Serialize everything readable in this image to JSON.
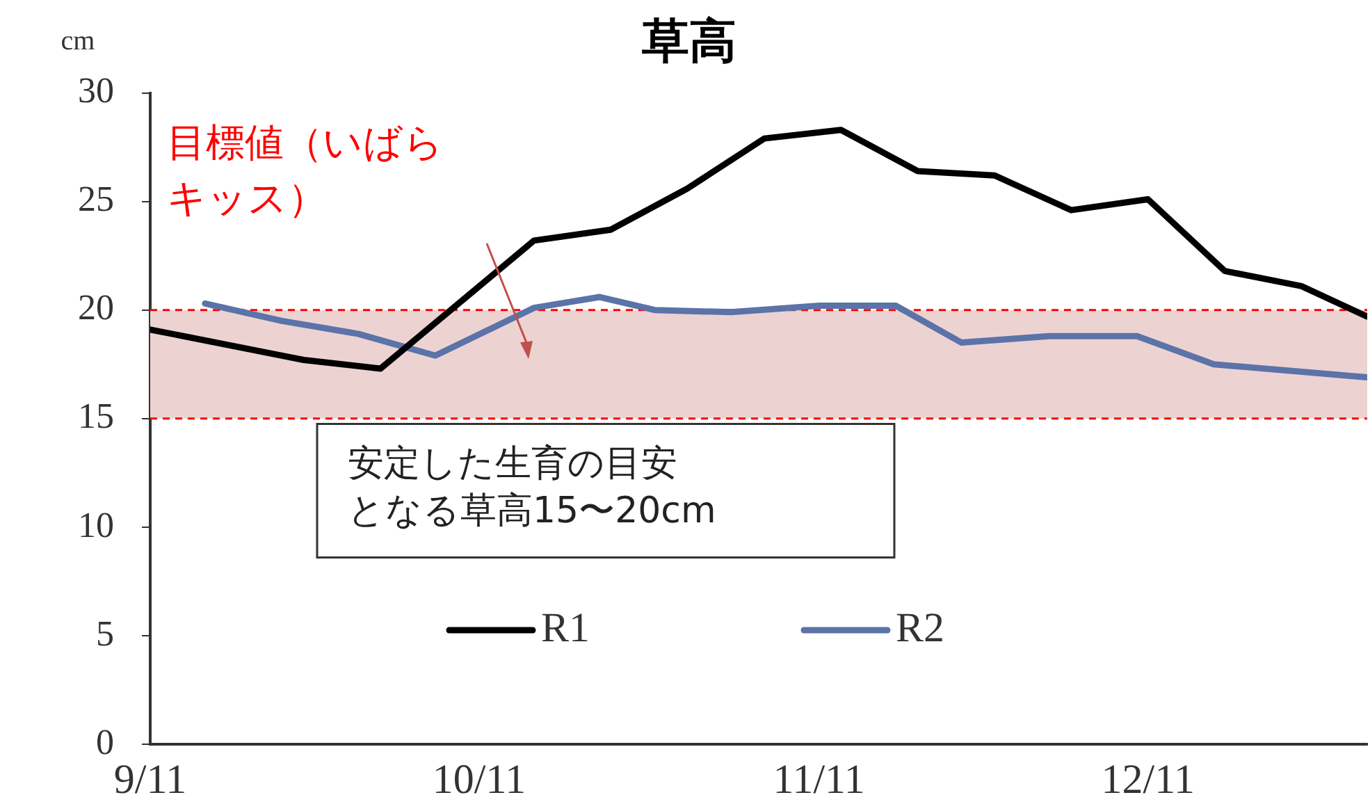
{
  "chart_data": {
    "type": "line",
    "title": "草高",
    "ylabel": "cm",
    "xlim": [
      "--09-11",
      "--12-31"
    ],
    "xticks": [
      {
        "value": "--09-11",
        "label": "9/11"
      },
      {
        "value": "--10-11",
        "label": "10/11"
      },
      {
        "value": "--11-11",
        "label": "11/11"
      },
      {
        "value": "--12-11",
        "label": "12/11"
      }
    ],
    "ylim": [
      0,
      30
    ],
    "yticks": [
      0,
      5,
      10,
      15,
      20,
      25,
      30
    ],
    "series": [
      {
        "name": "R1",
        "color": "#000000",
        "x": [
          "--09-11",
          "--09-25",
          "--10-02",
          "--10-16",
          "--10-23",
          "--10-30",
          "--11-06",
          "--11-13",
          "--11-20",
          "--11-27",
          "--12-04",
          "--12-11",
          "--12-18",
          "--12-25",
          "--12-31"
        ],
        "values": [
          19.1,
          17.7,
          17.3,
          23.2,
          23.7,
          25.6,
          27.9,
          28.3,
          26.4,
          26.2,
          24.6,
          25.1,
          21.8,
          21.1,
          19.7
        ]
      },
      {
        "name": "R2",
        "color": "#5b73a8",
        "x": [
          "--09-16",
          "--09-23",
          "--09-30",
          "--10-07",
          "--10-16",
          "--10-22",
          "--10-27",
          "--11-03",
          "--11-11",
          "--11-18",
          "--11-24",
          "--12-02",
          "--12-10",
          "--12-17",
          "--12-31"
        ],
        "values": [
          20.3,
          19.5,
          18.9,
          17.9,
          20.1,
          20.6,
          20.0,
          19.9,
          20.2,
          20.2,
          18.5,
          18.8,
          18.8,
          17.5,
          16.9
        ]
      }
    ],
    "bands": [
      {
        "axis": "y",
        "from": 15,
        "to": 20,
        "label": "目標値（いばらキッス）",
        "color": "#ecd3d2"
      }
    ],
    "ref_lines": [
      {
        "axis": "y",
        "value": 20,
        "color": "#ff0000",
        "line_style": "dashed"
      },
      {
        "axis": "y",
        "value": 15,
        "color": "#ff0000",
        "line_style": "dashed"
      }
    ],
    "annotations": [
      "安定した生育の目安となる草高15〜20cm"
    ],
    "marker": "none",
    "legend": "bottom"
  }
}
